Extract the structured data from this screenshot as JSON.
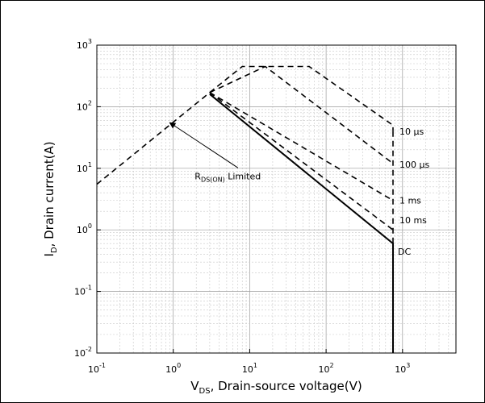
{
  "chart_data": {
    "type": "line",
    "xscale": "log",
    "yscale": "log",
    "xlim": [
      0.1,
      5000
    ],
    "ylim": [
      0.01,
      1000
    ],
    "grid": true,
    "xticks": [
      {
        "base": "10",
        "exp": "-1"
      },
      {
        "base": "10",
        "exp": "0"
      },
      {
        "base": "10",
        "exp": "1"
      },
      {
        "base": "10",
        "exp": "2"
      },
      {
        "base": "10",
        "exp": "3"
      }
    ],
    "yticks": [
      {
        "base": "10",
        "exp": "-2"
      },
      {
        "base": "10",
        "exp": "-1"
      },
      {
        "base": "10",
        "exp": "0"
      },
      {
        "base": "10",
        "exp": "1"
      },
      {
        "base": "10",
        "exp": "2"
      },
      {
        "base": "10",
        "exp": "3"
      }
    ],
    "xlabel": {
      "main": "V",
      "sub": "DS",
      "rest": ", Drain-source voltage(V)"
    },
    "ylabel": {
      "main": "I",
      "sub": "D",
      "rest": ", Drain current(A)"
    },
    "series": [
      {
        "label": "",
        "style": "dashed",
        "points": [
          [
            0.1,
            5.5
          ],
          [
            3,
            170
          ]
        ]
      },
      {
        "label": "10 μs",
        "style": "dashed",
        "points": [
          [
            3,
            170
          ],
          [
            8,
            450
          ],
          [
            60,
            450
          ],
          [
            750,
            50
          ],
          [
            750,
            40
          ]
        ]
      },
      {
        "label": "100 μs",
        "style": "dashed",
        "points": [
          [
            3,
            170
          ],
          [
            16,
            450
          ],
          [
            750,
            12
          ]
        ]
      },
      {
        "label": "1 ms",
        "style": "dashed",
        "points": [
          [
            3,
            170
          ],
          [
            750,
            3
          ]
        ]
      },
      {
        "label": "10 ms",
        "style": "dashed",
        "points": [
          [
            3,
            170
          ],
          [
            750,
            1
          ]
        ]
      },
      {
        "label": "DC",
        "style": "solid",
        "points": [
          [
            3,
            160
          ],
          [
            750,
            0.6
          ],
          [
            750,
            0.01
          ]
        ]
      },
      {
        "label": "",
        "style": "dashed",
        "points": [
          [
            750,
            40
          ],
          [
            750,
            0.6
          ]
        ]
      }
    ],
    "annotations": [
      {
        "text_main": "R",
        "text_sub": "DS(ON)",
        "text_rest": " Limited",
        "at": [
          14,
          7.5
        ],
        "arrow_from": [
          5.5,
          8.5
        ],
        "arrow_to": [
          0.9,
          55
        ]
      }
    ]
  }
}
